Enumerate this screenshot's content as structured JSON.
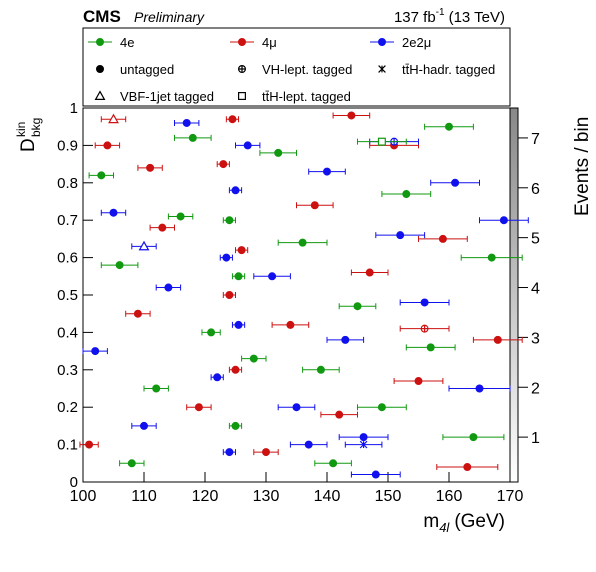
{
  "chart_data": {
    "type": "scatter",
    "experiment": "CMS",
    "status": "Preliminary",
    "lumi": {
      "value": "137 fb",
      "exponent": "-1",
      "energy": "(13 TeV)"
    },
    "x_label": {
      "symbol": "m",
      "subscript": "4l",
      "unit": "(GeV)"
    },
    "y_label": {
      "symbol": "D",
      "superscript": "kin",
      "subscript": "bkg"
    },
    "z_label": "Events / bin",
    "xlim": [
      100,
      170
    ],
    "xticks": [
      100,
      110,
      120,
      130,
      140,
      150,
      160,
      170
    ],
    "ylim": [
      0,
      1
    ],
    "yticks": [
      0,
      0.1,
      0.2,
      0.3,
      0.4,
      0.5,
      0.6,
      0.7,
      0.8,
      0.9,
      1
    ],
    "zlim": [
      0.1,
      7.6
    ],
    "zticks": [
      1,
      2,
      3,
      4,
      5,
      6,
      7
    ],
    "flavors": [
      {
        "name": "4e",
        "color": "#119911"
      },
      {
        "name": "4μ",
        "color": "#cc1111"
      },
      {
        "name": "2e2μ",
        "color": "#1111ee"
      }
    ],
    "tags": [
      {
        "name": "untagged",
        "marker": "dot"
      },
      {
        "name": "VH-lept. tagged",
        "marker": "crosscircle"
      },
      {
        "name": "tt̄H-hadr. tagged",
        "marker": "star"
      },
      {
        "name": "VBF-1jet tagged",
        "marker": "triangle"
      },
      {
        "name": "tt̄H-lept. tagged",
        "marker": "square"
      }
    ],
    "series": [
      {
        "flavor": "4e",
        "tag": "untagged",
        "x": [
          103,
          106,
          112,
          118,
          121,
          124,
          125,
          125.5,
          128,
          132,
          136,
          141,
          145,
          149,
          153,
          157,
          160,
          164,
          167,
          108,
          139,
          116
        ],
        "y": [
          0.82,
          0.58,
          0.25,
          0.92,
          0.4,
          0.7,
          0.15,
          0.55,
          0.33,
          0.88,
          0.64,
          0.05,
          0.47,
          0.2,
          0.77,
          0.36,
          0.95,
          0.12,
          0.6,
          0.05,
          0.3,
          0.71
        ],
        "xerr": [
          2,
          3,
          2,
          3,
          1.5,
          1,
          1,
          1,
          2,
          3,
          4,
          3,
          3,
          4,
          4,
          4,
          4,
          5,
          5,
          2,
          3,
          2
        ]
      },
      {
        "flavor": "4μ",
        "tag": "untagged",
        "x": [
          101,
          104,
          109,
          113,
          119,
          123,
          124,
          124.5,
          125,
          126,
          130,
          134,
          138,
          142,
          147,
          151,
          155,
          159,
          163,
          168,
          111,
          144
        ],
        "y": [
          0.1,
          0.9,
          0.45,
          0.68,
          0.2,
          0.85,
          0.5,
          0.97,
          0.3,
          0.62,
          0.08,
          0.42,
          0.74,
          0.18,
          0.56,
          0.9,
          0.27,
          0.65,
          0.04,
          0.38,
          0.84,
          0.98
        ],
        "xerr": [
          1.5,
          2,
          2,
          2,
          2,
          1,
          1,
          1,
          1,
          1,
          2,
          3,
          3,
          3,
          3,
          4,
          4,
          4,
          5,
          4,
          2,
          3
        ]
      },
      {
        "flavor": "2e2μ",
        "tag": "untagged",
        "x": [
          102,
          105,
          110,
          114,
          117,
          122,
          123.5,
          124,
          125,
          125.5,
          127,
          131,
          135,
          140,
          143,
          148,
          152,
          156,
          161,
          165,
          169,
          137,
          146
        ],
        "y": [
          0.35,
          0.72,
          0.15,
          0.52,
          0.96,
          0.28,
          0.6,
          0.08,
          0.78,
          0.42,
          0.9,
          0.55,
          0.2,
          0.83,
          0.38,
          0.02,
          0.66,
          0.48,
          0.8,
          0.25,
          0.7,
          0.1,
          0.12
        ],
        "xerr": [
          2,
          2,
          2,
          2,
          2,
          1,
          1,
          1,
          1,
          1,
          2,
          3,
          3,
          3,
          3,
          4,
          4,
          4,
          4,
          5,
          4,
          3,
          4
        ]
      },
      {
        "flavor": "4μ",
        "tag": "VH-lept. tagged",
        "x": [
          156
        ],
        "y": [
          0.41
        ],
        "xerr": [
          4
        ]
      },
      {
        "flavor": "2e2μ",
        "tag": "VH-lept. tagged",
        "x": [
          151
        ],
        "y": [
          0.91
        ],
        "xerr": [
          4
        ]
      },
      {
        "flavor": "4μ",
        "tag": "VBF-1jet tagged",
        "x": [
          105
        ],
        "y": [
          0.97
        ],
        "xerr": [
          2
        ]
      },
      {
        "flavor": "2e2μ",
        "tag": "VBF-1jet tagged",
        "x": [
          110
        ],
        "y": [
          0.63
        ],
        "xerr": [
          2
        ]
      },
      {
        "flavor": "4e",
        "tag": "tt̄H-lept. tagged",
        "x": [
          149
        ],
        "y": [
          0.91
        ],
        "xerr": [
          4
        ]
      },
      {
        "flavor": "2e2μ",
        "tag": "tt̄H-hadr. tagged",
        "x": [
          146
        ],
        "y": [
          0.1
        ],
        "xerr": [
          3
        ]
      }
    ]
  }
}
